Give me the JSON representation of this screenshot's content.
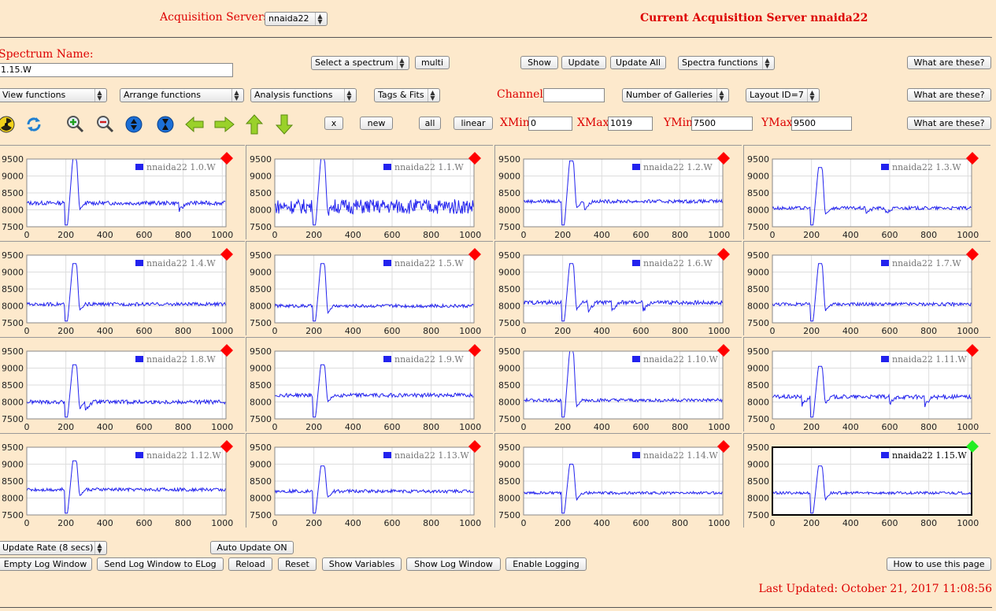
{
  "header": {
    "servers_label": "Acquisition Servers",
    "server_select": "nnaida22",
    "current_server": "Current Acquisition Server nnaida22"
  },
  "spectrum": {
    "label": "Spectrum Name:",
    "value": "1.15.W",
    "select_label": "Select a spectrum",
    "multi": "multi",
    "show": "Show",
    "update": "Update",
    "update_all": "Update All",
    "spectra_functions": "Spectra functions",
    "help1": "What are these?"
  },
  "functions": {
    "view": "View functions",
    "arrange": "Arrange functions",
    "analysis": "Analysis functions",
    "tags": "Tags & Fits",
    "channel_label": "Channel:",
    "channel_value": "",
    "galleries": "Number of Galleries",
    "layout": "Layout ID=7",
    "help2": "What are these?"
  },
  "toolbar": {
    "x": "x",
    "new": "new",
    "all": "all",
    "linear": "linear",
    "xmin_label": "XMin",
    "xmin": "0",
    "xmax_label": "XMax",
    "xmax": "1019",
    "ymin_label": "YMin",
    "ymin": "7500",
    "ymax_label": "YMax",
    "ymax": "9500",
    "help3": "What are these?",
    "icons": [
      "radiation-icon",
      "refresh-icon",
      "zoom-in-icon",
      "zoom-out-icon",
      "expand-vertical-icon",
      "compress-vertical-icon",
      "arrow-left-icon",
      "arrow-right-icon",
      "arrow-up-icon",
      "arrow-down-icon"
    ]
  },
  "bottom": {
    "update_rate": "Update Rate (8 secs)",
    "auto_update": "Auto Update ON",
    "empty_log": "Empty Log Window",
    "send_log": "Send Log Window to ELog",
    "reload": "Reload",
    "reset": "Reset",
    "show_vars": "Show Variables",
    "show_log": "Show Log Window",
    "enable_logging": "Enable Logging",
    "how_to": "How to use this page",
    "last_updated": "Last Updated: October 21, 2017 11:08:56"
  },
  "colors": {
    "background": "#fde9cc",
    "title_red": "#dd0000",
    "trace_blue": "#2222ee",
    "marker_red": "#ff0000",
    "marker_green": "#22ee22"
  },
  "chart_data": {
    "type": "line",
    "xlim": [
      0,
      1019
    ],
    "ylim": [
      7500,
      9500
    ],
    "x_ticks": [
      0,
      200,
      400,
      600,
      800,
      1000
    ],
    "y_ticks": [
      7500,
      8000,
      8500,
      9000,
      9500
    ],
    "grid": true,
    "legend": "top-right",
    "panels": [
      {
        "name": "nnaida22 1.0.W",
        "baseline": 8200,
        "noise": 60,
        "peak": 9500,
        "wiggles": [
          [
            780,
            -220
          ]
        ],
        "status": "red"
      },
      {
        "name": "nnaida22 1.1.W",
        "baseline": 8100,
        "noise": 220,
        "peak": 9500,
        "wiggles": [],
        "status": "red"
      },
      {
        "name": "nnaida22 1.2.W",
        "baseline": 8250,
        "noise": 50,
        "peak": 9450,
        "wiggles": [
          [
            310,
            -250
          ]
        ],
        "status": "red"
      },
      {
        "name": "nnaida22 1.3.W",
        "baseline": 8050,
        "noise": 50,
        "peak": 9250,
        "wiggles": [
          [
            480,
            -120
          ],
          [
            580,
            -150
          ]
        ],
        "status": "red"
      },
      {
        "name": "nnaida22 1.4.W",
        "baseline": 8050,
        "noise": 50,
        "peak": 9250,
        "wiggles": [],
        "status": "red"
      },
      {
        "name": "nnaida22 1.5.W",
        "baseline": 8000,
        "noise": 50,
        "peak": 9250,
        "wiggles": [],
        "status": "red"
      },
      {
        "name": "nnaida22 1.6.W",
        "baseline": 8100,
        "noise": 60,
        "peak": 9250,
        "wiggles": [
          [
            330,
            -250
          ],
          [
            450,
            -250
          ],
          [
            610,
            -250
          ]
        ],
        "status": "red"
      },
      {
        "name": "nnaida22 1.7.W",
        "baseline": 8050,
        "noise": 50,
        "peak": 9250,
        "wiggles": [],
        "status": "red"
      },
      {
        "name": "nnaida22 1.8.W",
        "baseline": 8000,
        "noise": 60,
        "peak": 9100,
        "wiggles": [
          [
            300,
            -200
          ]
        ],
        "status": "red"
      },
      {
        "name": "nnaida22 1.9.W",
        "baseline": 8200,
        "noise": 60,
        "peak": 9100,
        "wiggles": [],
        "status": "red"
      },
      {
        "name": "nnaida22 1.10.W",
        "baseline": 8050,
        "noise": 50,
        "peak": 9500,
        "wiggles": [],
        "status": "red"
      },
      {
        "name": "nnaida22 1.11.W",
        "baseline": 8150,
        "noise": 60,
        "peak": 9050,
        "wiggles": [
          [
            150,
            -250
          ],
          [
            600,
            -200
          ],
          [
            780,
            -250
          ]
        ],
        "status": "red"
      },
      {
        "name": "nnaida22 1.12.W",
        "baseline": 8250,
        "noise": 50,
        "peak": 9100,
        "wiggles": [],
        "status": "red"
      },
      {
        "name": "nnaida22 1.13.W",
        "baseline": 8200,
        "noise": 50,
        "peak": 8950,
        "wiggles": [],
        "status": "red"
      },
      {
        "name": "nnaida22 1.14.W",
        "baseline": 8150,
        "noise": 40,
        "peak": 9000,
        "wiggles": [],
        "status": "red"
      },
      {
        "name": "nnaida22 1.15.W",
        "baseline": 8150,
        "noise": 40,
        "peak": 8950,
        "wiggles": [],
        "status": "green"
      }
    ]
  }
}
